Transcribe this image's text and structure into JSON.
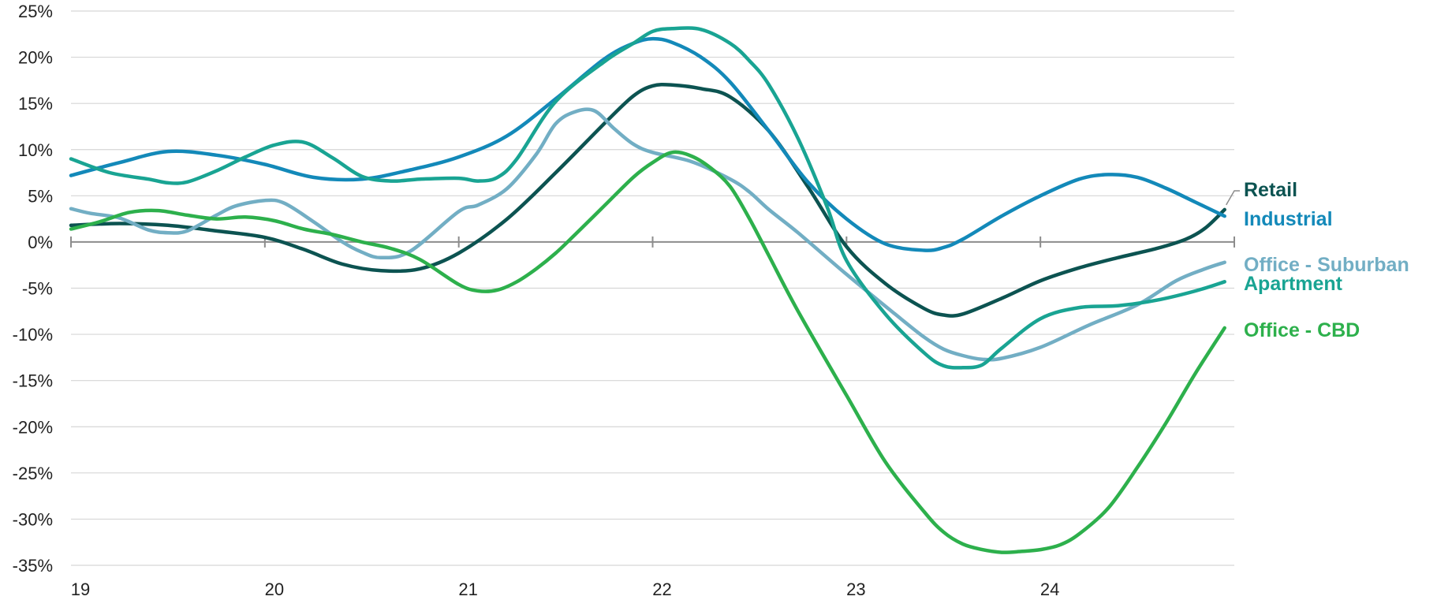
{
  "chart_data": {
    "type": "line",
    "title": "",
    "xlabel": "",
    "ylabel": "",
    "ylim": [
      -35,
      25
    ],
    "y_tick_values": [
      25,
      20,
      15,
      10,
      5,
      0,
      -5,
      -10,
      -15,
      -20,
      -25,
      -30,
      -35
    ],
    "y_tick_labels": [
      "25%",
      "20%",
      "15%",
      "10%",
      "5%",
      "0%",
      "-5%",
      "-10%",
      "-15%",
      "-20%",
      "-25%",
      "-30%",
      "-35%"
    ],
    "x_tick_values": [
      19,
      20,
      21,
      22,
      23,
      24
    ],
    "x_tick_labels": [
      "19",
      "20",
      "21",
      "22",
      "23",
      "24"
    ],
    "xlim": [
      19,
      25
    ],
    "grid": "horizontal",
    "legend": "direct labels at right end of lines",
    "series": [
      {
        "name": "Retail",
        "color": "#0c5351",
        "x": [
          19.0,
          19.25,
          19.5,
          19.75,
          20.0,
          20.2,
          20.4,
          20.6,
          20.8,
          21.0,
          21.25,
          21.5,
          21.75,
          21.9,
          22.0,
          22.1,
          22.25,
          22.4,
          22.6,
          22.8,
          23.0,
          23.2,
          23.4,
          23.5,
          23.6,
          23.8,
          24.0,
          24.2,
          24.4,
          24.6,
          24.75,
          24.85,
          24.95
        ],
        "values": [
          1.8,
          2.0,
          1.8,
          1.2,
          0.5,
          -0.8,
          -2.4,
          -3.1,
          -2.9,
          -1.2,
          2.5,
          7.5,
          12.8,
          15.8,
          16.9,
          17.0,
          16.6,
          15.7,
          12.0,
          6.0,
          -0.5,
          -4.5,
          -7.2,
          -7.9,
          -7.8,
          -6.1,
          -4.2,
          -2.8,
          -1.7,
          -0.7,
          0.3,
          1.5,
          3.5
        ]
      },
      {
        "name": "Industrial",
        "color": "#1389b9",
        "x": [
          19.0,
          19.25,
          19.5,
          19.75,
          20.0,
          20.25,
          20.5,
          20.75,
          21.0,
          21.25,
          21.5,
          21.75,
          21.9,
          22.0,
          22.1,
          22.25,
          22.4,
          22.6,
          22.8,
          23.0,
          23.2,
          23.4,
          23.5,
          23.6,
          23.8,
          24.0,
          24.2,
          24.35,
          24.5,
          24.65,
          24.8,
          24.95
        ],
        "values": [
          7.2,
          8.6,
          9.8,
          9.4,
          8.4,
          7.0,
          6.8,
          7.8,
          9.2,
          11.5,
          15.5,
          19.8,
          21.5,
          22.0,
          21.6,
          20.0,
          17.3,
          12.0,
          6.5,
          2.5,
          -0.2,
          -0.9,
          -0.6,
          0.3,
          2.8,
          5.0,
          6.8,
          7.3,
          7.0,
          5.8,
          4.3,
          2.8
        ]
      },
      {
        "name": "Office - Suburban",
        "color": "#72aec4",
        "x": [
          19.0,
          19.1,
          19.25,
          19.4,
          19.5,
          19.6,
          19.75,
          19.85,
          20.0,
          20.1,
          20.25,
          20.4,
          20.5,
          20.6,
          20.75,
          21.0,
          21.1,
          21.25,
          21.4,
          21.5,
          21.6,
          21.7,
          21.8,
          21.9,
          22.0,
          22.2,
          22.4,
          22.5,
          22.6,
          22.75,
          23.0,
          23.25,
          23.4,
          23.5,
          23.6,
          23.7,
          23.8,
          24.0,
          24.25,
          24.5,
          24.7,
          24.85,
          24.95
        ],
        "values": [
          3.6,
          3.1,
          2.6,
          1.3,
          1.0,
          1.2,
          2.9,
          3.9,
          4.5,
          4.2,
          2.2,
          0.0,
          -1.1,
          -1.7,
          -1.0,
          3.3,
          4.0,
          5.8,
          9.5,
          12.8,
          14.1,
          14.2,
          12.3,
          10.6,
          9.7,
          8.7,
          6.8,
          5.4,
          3.5,
          1.0,
          -3.5,
          -7.8,
          -10.3,
          -11.6,
          -12.3,
          -12.7,
          -12.6,
          -11.4,
          -9.0,
          -6.8,
          -4.2,
          -2.9,
          -2.2
        ]
      },
      {
        "name": "Apartment",
        "color": "#19a493",
        "x": [
          19.0,
          19.2,
          19.4,
          19.5,
          19.6,
          19.75,
          19.9,
          20.05,
          20.2,
          20.35,
          20.5,
          20.65,
          20.8,
          21.0,
          21.1,
          21.2,
          21.3,
          21.5,
          21.75,
          21.9,
          22.0,
          22.1,
          22.25,
          22.4,
          22.5,
          22.6,
          22.75,
          22.9,
          23.0,
          23.2,
          23.4,
          23.5,
          23.6,
          23.7,
          23.8,
          24.0,
          24.2,
          24.4,
          24.6,
          24.8,
          24.95
        ],
        "values": [
          9.0,
          7.5,
          6.8,
          6.4,
          6.5,
          7.7,
          9.2,
          10.5,
          10.8,
          9.1,
          7.1,
          6.6,
          6.8,
          6.9,
          6.6,
          7.0,
          9.0,
          15.2,
          19.5,
          21.5,
          22.8,
          23.1,
          23.0,
          21.5,
          19.6,
          17.0,
          11.2,
          3.8,
          -2.0,
          -7.8,
          -12.0,
          -13.4,
          -13.6,
          -13.3,
          -11.5,
          -8.3,
          -7.1,
          -6.9,
          -6.3,
          -5.3,
          -4.3
        ]
      },
      {
        "name": "Office - CBD",
        "color": "#2db04c",
        "x": [
          19.0,
          19.15,
          19.3,
          19.45,
          19.6,
          19.75,
          19.9,
          20.05,
          20.2,
          20.35,
          20.5,
          20.65,
          20.8,
          21.0,
          21.1,
          21.2,
          21.3,
          21.4,
          21.5,
          21.6,
          21.75,
          21.9,
          22.0,
          22.1,
          22.2,
          22.3,
          22.4,
          22.5,
          22.6,
          22.75,
          23.0,
          23.2,
          23.4,
          23.5,
          23.6,
          23.7,
          23.8,
          23.9,
          24.0,
          24.1,
          24.2,
          24.35,
          24.5,
          24.65,
          24.8,
          24.95
        ],
        "values": [
          1.4,
          2.2,
          3.2,
          3.4,
          2.9,
          2.5,
          2.7,
          2.3,
          1.4,
          0.8,
          0.0,
          -0.7,
          -1.9,
          -4.6,
          -5.3,
          -5.2,
          -4.3,
          -2.9,
          -1.2,
          0.8,
          3.9,
          7.0,
          8.6,
          9.7,
          9.3,
          8.0,
          6.0,
          2.5,
          -1.5,
          -7.5,
          -16.6,
          -23.8,
          -29.2,
          -31.4,
          -32.7,
          -33.3,
          -33.6,
          -33.5,
          -33.3,
          -32.8,
          -31.6,
          -28.8,
          -24.4,
          -19.5,
          -14.2,
          -9.3
        ]
      }
    ]
  }
}
